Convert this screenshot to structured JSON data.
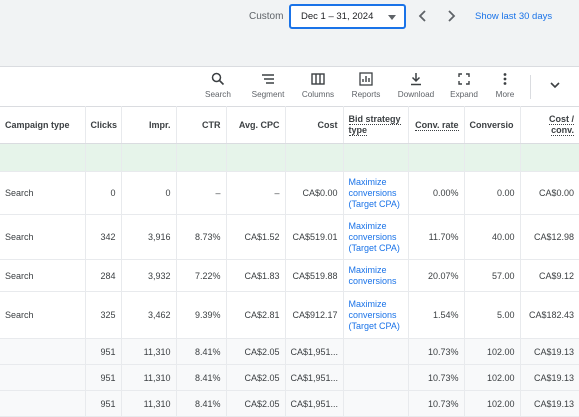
{
  "date_range": {
    "label": "Custom",
    "value": "Dec 1 – 31, 2024",
    "show_last": "Show last 30 days"
  },
  "toolbar": [
    {
      "label": "Search",
      "icon": "search-icon"
    },
    {
      "label": "Segment",
      "icon": "segment-icon"
    },
    {
      "label": "Columns",
      "icon": "columns-icon"
    },
    {
      "label": "Reports",
      "icon": "reports-icon"
    },
    {
      "label": "Download",
      "icon": "download-icon"
    },
    {
      "label": "Expand",
      "icon": "expand-icon"
    },
    {
      "label": "More",
      "icon": "more-vert-icon"
    }
  ],
  "table": {
    "columns": [
      "Campaign type",
      "Clicks",
      "Impr.",
      "CTR",
      "Avg. CPC",
      "Cost",
      "Bid strategy type",
      "Conv. rate",
      "Conversio",
      "Cost / conv."
    ],
    "rows": [
      [
        "Search",
        "0",
        "0",
        "–",
        "–",
        "CA$0.00",
        "Maximize conversions (Target CPA)",
        "0.00%",
        "0.00",
        "CA$0.00"
      ],
      [
        "Search",
        "342",
        "3,916",
        "8.73%",
        "CA$1.52",
        "CA$519.01",
        "Maximize conversions (Target CPA)",
        "11.70%",
        "40.00",
        "CA$12.98"
      ],
      [
        "Search",
        "284",
        "3,932",
        "7.22%",
        "CA$1.83",
        "CA$519.88",
        "Maximize conversions",
        "20.07%",
        "57.00",
        "CA$9.12"
      ],
      [
        "Search",
        "325",
        "3,462",
        "9.39%",
        "CA$2.81",
        "CA$912.17",
        "Maximize conversions (Target CPA)",
        "1.54%",
        "5.00",
        "CA$182.43"
      ]
    ],
    "totals": [
      [
        "",
        "951",
        "11,310",
        "8.41%",
        "CA$2.05",
        "CA$1,951...",
        "",
        "10.73%",
        "102.00",
        "CA$19.13"
      ],
      [
        "",
        "951",
        "11,310",
        "8.41%",
        "CA$2.05",
        "CA$1,951...",
        "",
        "10.73%",
        "102.00",
        "CA$19.13"
      ],
      [
        "",
        "951",
        "11,310",
        "8.41%",
        "CA$2.05",
        "CA$1,951...",
        "",
        "10.73%",
        "102.00",
        "CA$19.13"
      ]
    ]
  },
  "colors": {
    "accent": "#1a73e8",
    "filter_row": "#e6f4ea",
    "header_bg": "#f1f3f4"
  }
}
